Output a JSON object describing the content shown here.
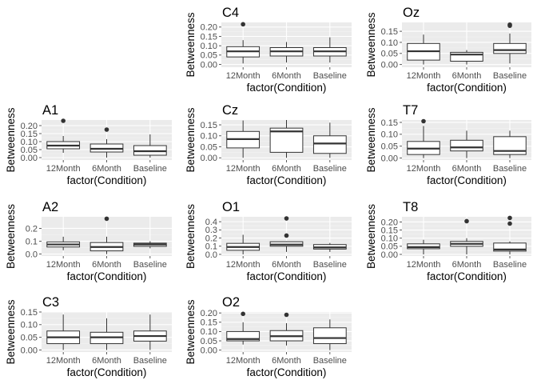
{
  "figure": {
    "colors": {
      "panel_bg": "#ebebeb",
      "grid_major": "#ffffff",
      "grid_minor": "#f4f4f4",
      "box_fill": "#ffffff",
      "box_line": "#333333",
      "outlier": "#333333",
      "tick": "#4d4d4d"
    }
  },
  "chart_data": [
    {
      "type": "box",
      "title": "C4",
      "xlabel": "factor(Condition)",
      "ylabel": "Betweenness",
      "categories": [
        "12Month",
        "6Month",
        "Baseline"
      ],
      "ylim": [
        -0.015,
        0.225
      ],
      "yticks": [
        0.0,
        0.05,
        0.1,
        0.15,
        0.2
      ],
      "ytick_labels": [
        "0.00",
        "0.05",
        "0.10",
        "0.15",
        "0.20"
      ],
      "boxes": [
        {
          "min": 0.005,
          "q1": 0.04,
          "median": 0.07,
          "q3": 0.095,
          "max": 0.13,
          "outliers": [
            0.215
          ]
        },
        {
          "min": 0.01,
          "q1": 0.045,
          "median": 0.07,
          "q3": 0.09,
          "max": 0.12,
          "outliers": []
        },
        {
          "min": 0.01,
          "q1": 0.045,
          "median": 0.07,
          "q3": 0.09,
          "max": 0.145,
          "outliers": []
        }
      ]
    },
    {
      "type": "box",
      "title": "Oz",
      "xlabel": "factor(Condition)",
      "ylabel": "Betweenness",
      "categories": [
        "12Month",
        "6Month",
        "Baseline"
      ],
      "ylim": [
        -0.012,
        0.19
      ],
      "yticks": [
        0.0,
        0.05,
        0.1,
        0.15
      ],
      "ytick_labels": [
        "0.00",
        "0.05",
        "0.10",
        "0.15"
      ],
      "boxes": [
        {
          "min": 0.0,
          "q1": 0.02,
          "median": 0.06,
          "q3": 0.095,
          "max": 0.135,
          "outliers": []
        },
        {
          "min": 0.0,
          "q1": 0.015,
          "median": 0.045,
          "q3": 0.055,
          "max": 0.065,
          "outliers": []
        },
        {
          "min": 0.005,
          "q1": 0.05,
          "median": 0.065,
          "q3": 0.095,
          "max": 0.14,
          "outliers": [
            0.175,
            0.18
          ]
        }
      ]
    },
    {
      "type": "box",
      "title": "A1",
      "xlabel": "factor(Condition)",
      "ylabel": "Betweenness",
      "categories": [
        "12Month",
        "6Month",
        "Baseline"
      ],
      "ylim": [
        -0.015,
        0.235
      ],
      "yticks": [
        0.0,
        0.05,
        0.1,
        0.15,
        0.2
      ],
      "ytick_labels": [
        "0.00",
        "0.05",
        "0.10",
        "0.15",
        "0.20"
      ],
      "boxes": [
        {
          "min": 0.03,
          "q1": 0.055,
          "median": 0.075,
          "q3": 0.1,
          "max": 0.135,
          "outliers": [
            0.23
          ]
        },
        {
          "min": 0.0,
          "q1": 0.035,
          "median": 0.055,
          "q3": 0.085,
          "max": 0.115,
          "outliers": [
            0.175
          ]
        },
        {
          "min": 0.0,
          "q1": 0.015,
          "median": 0.04,
          "q3": 0.075,
          "max": 0.145,
          "outliers": []
        }
      ]
    },
    {
      "type": "box",
      "title": "Cz",
      "xlabel": "factor(Condition)",
      "ylabel": "Betweenness",
      "categories": [
        "12Month",
        "6Month",
        "Baseline"
      ],
      "ylim": [
        -0.01,
        0.172
      ],
      "yticks": [
        0.0,
        0.05,
        0.1,
        0.15
      ],
      "ytick_labels": [
        "0.00",
        "0.05",
        "0.10",
        "0.15"
      ],
      "boxes": [
        {
          "min": 0.0,
          "q1": 0.045,
          "median": 0.085,
          "q3": 0.12,
          "max": 0.17,
          "outliers": []
        },
        {
          "min": 0.0,
          "q1": 0.025,
          "median": 0.12,
          "q3": 0.135,
          "max": 0.172,
          "outliers": []
        },
        {
          "min": 0.0,
          "q1": 0.02,
          "median": 0.065,
          "q3": 0.1,
          "max": 0.16,
          "outliers": []
        }
      ]
    },
    {
      "type": "box",
      "title": "T7",
      "xlabel": "factor(Condition)",
      "ylabel": "Betweenness",
      "categories": [
        "12Month",
        "6Month",
        "Baseline"
      ],
      "ylim": [
        -0.008,
        0.16
      ],
      "yticks": [
        0.0,
        0.05,
        0.1,
        0.15
      ],
      "ytick_labels": [
        "0.00",
        "0.05",
        "0.10",
        "0.15"
      ],
      "boxes": [
        {
          "min": 0.0,
          "q1": 0.015,
          "median": 0.04,
          "q3": 0.07,
          "max": 0.135,
          "outliers": [
            0.155
          ]
        },
        {
          "min": 0.0,
          "q1": 0.03,
          "median": 0.045,
          "q3": 0.075,
          "max": 0.115,
          "outliers": []
        },
        {
          "min": 0.0,
          "q1": 0.015,
          "median": 0.03,
          "q3": 0.09,
          "max": 0.115,
          "outliers": []
        }
      ]
    },
    {
      "type": "box",
      "title": "A2",
      "xlabel": "factor(Condition)",
      "ylabel": "Betweenness",
      "categories": [
        "12Month",
        "6Month",
        "Baseline"
      ],
      "ylim": [
        -0.015,
        0.29
      ],
      "yticks": [
        0.0,
        0.1,
        0.2
      ],
      "ytick_labels": [
        "0.0",
        "0.1",
        "0.2"
      ],
      "boxes": [
        {
          "min": 0.03,
          "q1": 0.055,
          "median": 0.075,
          "q3": 0.095,
          "max": 0.135,
          "outliers": []
        },
        {
          "min": 0.0,
          "q1": 0.025,
          "median": 0.055,
          "q3": 0.09,
          "max": 0.135,
          "outliers": [
            0.275
          ]
        },
        {
          "min": 0.045,
          "q1": 0.06,
          "median": 0.075,
          "q3": 0.085,
          "max": 0.1,
          "outliers": []
        }
      ]
    },
    {
      "type": "box",
      "title": "O1",
      "xlabel": "factor(Condition)",
      "ylabel": "Betweenness",
      "categories": [
        "12Month",
        "6Month",
        "Baseline"
      ],
      "ylim": [
        -0.02,
        0.46
      ],
      "yticks": [
        0.0,
        0.1,
        0.2,
        0.3,
        0.4
      ],
      "ytick_labels": [
        "0.0",
        "0.1",
        "0.2",
        "0.3",
        "0.4"
      ],
      "boxes": [
        {
          "min": 0.0,
          "q1": 0.05,
          "median": 0.09,
          "q3": 0.135,
          "max": 0.24,
          "outliers": []
        },
        {
          "min": 0.03,
          "q1": 0.1,
          "median": 0.12,
          "q3": 0.155,
          "max": 0.16,
          "outliers": [
            0.44,
            0.23
          ]
        },
        {
          "min": 0.03,
          "q1": 0.065,
          "median": 0.085,
          "q3": 0.12,
          "max": 0.14,
          "outliers": []
        }
      ]
    },
    {
      "type": "box",
      "title": "T8",
      "xlabel": "factor(Condition)",
      "ylabel": "Betweenness",
      "categories": [
        "12Month",
        "6Month",
        "Baseline"
      ],
      "ylim": [
        -0.01,
        0.232
      ],
      "yticks": [
        0.0,
        0.05,
        0.1,
        0.15,
        0.2
      ],
      "ytick_labels": [
        "0.00",
        "0.05",
        "0.10",
        "0.15",
        "0.20"
      ],
      "boxes": [
        {
          "min": 0.0,
          "q1": 0.035,
          "median": 0.045,
          "q3": 0.065,
          "max": 0.09,
          "outliers": []
        },
        {
          "min": 0.0,
          "q1": 0.05,
          "median": 0.065,
          "q3": 0.08,
          "max": 0.1,
          "outliers": [
            0.205
          ]
        },
        {
          "min": 0.0,
          "q1": 0.02,
          "median": 0.03,
          "q3": 0.07,
          "max": 0.08,
          "outliers": [
            0.225,
            0.19
          ]
        }
      ]
    },
    {
      "type": "box",
      "title": "C3",
      "xlabel": "factor(Condition)",
      "ylabel": "Betweenness",
      "categories": [
        "12Month",
        "6Month",
        "Baseline"
      ],
      "ylim": [
        -0.008,
        0.15
      ],
      "yticks": [
        0.0,
        0.05,
        0.1,
        0.15
      ],
      "ytick_labels": [
        "0.00",
        "0.05",
        "0.10",
        "0.15"
      ],
      "boxes": [
        {
          "min": 0.0,
          "q1": 0.025,
          "median": 0.05,
          "q3": 0.075,
          "max": 0.14,
          "outliers": []
        },
        {
          "min": 0.0,
          "q1": 0.025,
          "median": 0.05,
          "q3": 0.07,
          "max": 0.125,
          "outliers": []
        },
        {
          "min": 0.0,
          "q1": 0.035,
          "median": 0.055,
          "q3": 0.075,
          "max": 0.14,
          "outliers": []
        }
      ]
    },
    {
      "type": "box",
      "title": "O2",
      "xlabel": "factor(Condition)",
      "ylabel": "Betweenness",
      "categories": [
        "12Month",
        "6Month",
        "Baseline"
      ],
      "ylim": [
        -0.01,
        0.205
      ],
      "yticks": [
        0.0,
        0.05,
        0.1,
        0.15,
        0.2
      ],
      "ytick_labels": [
        "0.00",
        "0.05",
        "0.10",
        "0.15",
        "0.20"
      ],
      "boxes": [
        {
          "min": 0.03,
          "q1": 0.05,
          "median": 0.06,
          "q3": 0.1,
          "max": 0.15,
          "outliers": [
            0.195
          ]
        },
        {
          "min": 0.025,
          "q1": 0.05,
          "median": 0.075,
          "q3": 0.105,
          "max": 0.145,
          "outliers": [
            0.19
          ]
        },
        {
          "min": 0.0,
          "q1": 0.035,
          "median": 0.065,
          "q3": 0.12,
          "max": 0.165,
          "outliers": []
        }
      ]
    }
  ]
}
